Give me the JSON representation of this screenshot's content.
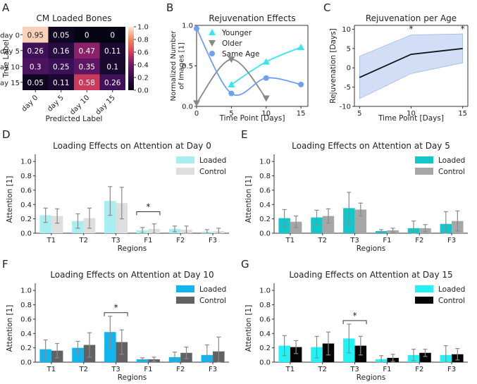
{
  "chart_data": [
    {
      "panel": "A",
      "type": "heatmap",
      "title": "CM Loaded Bones",
      "xlabel": "Predicted Label",
      "ylabel": "True Label",
      "x_categories": [
        "day 0",
        "day 5",
        "day 10",
        "day 15"
      ],
      "y_categories": [
        "day 0",
        "day 5",
        "day 10",
        "day 15"
      ],
      "values": [
        [
          0.95,
          0.05,
          0,
          0
        ],
        [
          0.26,
          0.16,
          0.47,
          0.11
        ],
        [
          0.3,
          0.25,
          0.35,
          0.1
        ],
        [
          0.05,
          0.11,
          0.58,
          0.26
        ]
      ],
      "value_labels": [
        [
          "0.95",
          "0.05",
          "0",
          "0"
        ],
        [
          "0.26",
          "0.16",
          "0.47",
          "0.11"
        ],
        [
          "0.3",
          "0.25",
          "0.35",
          "0.1"
        ],
        [
          "0.05",
          "0.11",
          "0.58",
          "0.26"
        ]
      ],
      "colorbar": {
        "range": [
          0,
          1.0
        ],
        "ticks": [
          "0.0",
          "0.2",
          "0.4",
          "0.6",
          "0.8",
          "1.0"
        ]
      }
    },
    {
      "panel": "B",
      "type": "line",
      "title": "Rejuvenation Effects",
      "xlabel": "Time Point [Days]",
      "ylabel": "Normalized Number of Images [1]",
      "xlim": [
        0,
        16
      ],
      "ylim": [
        0,
        1.0
      ],
      "xticks": [
        "0",
        "5",
        "10",
        "15"
      ],
      "yticks": [
        "0.0",
        "0.5",
        "1.0"
      ],
      "legend_position": "top-right",
      "series": [
        {
          "name": "Younger",
          "color": "#33e8f0",
          "marker": "triangle-up",
          "x": [
            5,
            10,
            15
          ],
          "y": [
            0.27,
            0.55,
            0.73
          ]
        },
        {
          "name": "Older",
          "color": "#888888",
          "marker": "triangle-down",
          "x": [
            0,
            5,
            10
          ],
          "y": [
            0.04,
            0.58,
            0.1
          ]
        },
        {
          "name": "Same Age",
          "color": "#6fa0f0",
          "marker": "circle",
          "x": [
            0,
            5,
            10,
            15
          ],
          "y": [
            0.96,
            0.16,
            0.35,
            0.27
          ]
        }
      ]
    },
    {
      "panel": "C",
      "type": "area",
      "title": "Rejuvenation per Age",
      "xlabel": "Time Point [Days]",
      "ylabel": "Rejuvenation [Days]",
      "xlim": [
        4.5,
        15.5
      ],
      "ylim": [
        -10,
        11
      ],
      "xticks": [
        "5",
        "10",
        "15"
      ],
      "yticks": [
        "-10",
        "-5",
        "0",
        "5",
        "10"
      ],
      "x": [
        5,
        10,
        15
      ],
      "y": [
        -2.5,
        3.5,
        5.0
      ],
      "band_upper": [
        3.0,
        8.5,
        8.8
      ],
      "band_lower": [
        -8.0,
        -1.5,
        1.3
      ],
      "line_color": "#111111",
      "band_color": "#c6d6f3",
      "annotations": [
        {
          "x": 10,
          "text": "*"
        },
        {
          "x": 15,
          "text": "*"
        }
      ]
    },
    {
      "panel": "D",
      "type": "bar",
      "title": "Loading Effects on Attention at Day 0",
      "xlabel": "Regions",
      "ylabel": "Attention [1]",
      "ylim": [
        0,
        1.1
      ],
      "yticks": [
        "0.0",
        "0.2",
        "0.4",
        "0.6",
        "0.8",
        "1.0"
      ],
      "categories": [
        "T1",
        "T2",
        "T3",
        "F1",
        "F2",
        "F3"
      ],
      "legend_position": "top-right",
      "series": [
        {
          "name": "Loaded",
          "color": "#a8eef0",
          "values": [
            0.25,
            0.17,
            0.45,
            0.04,
            0.06,
            0.02
          ],
          "errors": [
            0.1,
            0.1,
            0.2,
            0.04,
            0.04,
            0.03
          ]
        },
        {
          "name": "Control",
          "color": "#dedede",
          "values": [
            0.24,
            0.21,
            0.42,
            0.06,
            0.05,
            0.03
          ],
          "errors": [
            0.1,
            0.14,
            0.22,
            0.07,
            0.05,
            0.04
          ]
        }
      ],
      "significance": [
        {
          "category": "F1",
          "text": "*"
        }
      ]
    },
    {
      "panel": "E",
      "type": "bar",
      "title": "Loading Effects on Attention at Day 5",
      "xlabel": "Regions",
      "ylabel": "Attention [1]",
      "ylim": [
        0,
        1.1
      ],
      "yticks": [
        "0.0",
        "0.2",
        "0.4",
        "0.6",
        "0.8",
        "1.0"
      ],
      "categories": [
        "T1",
        "T2",
        "T3",
        "F1",
        "F2",
        "F3"
      ],
      "legend_position": "top-right",
      "series": [
        {
          "name": "Loaded",
          "color": "#12c6c9",
          "values": [
            0.21,
            0.22,
            0.35,
            0.03,
            0.07,
            0.13
          ],
          "errors": [
            0.12,
            0.1,
            0.22,
            0.02,
            0.1,
            0.17
          ]
        },
        {
          "name": "Control",
          "color": "#a6a6a6",
          "values": [
            0.16,
            0.24,
            0.33,
            0.04,
            0.07,
            0.17
          ],
          "errors": [
            0.08,
            0.1,
            0.09,
            0.03,
            0.05,
            0.14
          ]
        }
      ],
      "significance": []
    },
    {
      "panel": "F",
      "type": "bar",
      "title": "Loading Effects on Attention at Day 10",
      "xlabel": "Regions",
      "ylabel": "Attention [1]",
      "ylim": [
        0,
        1.1
      ],
      "yticks": [
        "0.0",
        "0.2",
        "0.4",
        "0.6",
        "0.8",
        "1.0"
      ],
      "categories": [
        "T1",
        "T2",
        "T3",
        "F1",
        "F2",
        "F3"
      ],
      "legend_position": "top-right",
      "series": [
        {
          "name": "Loaded",
          "color": "#10b4ee",
          "values": [
            0.18,
            0.2,
            0.42,
            0.04,
            0.07,
            0.1
          ],
          "errors": [
            0.13,
            0.09,
            0.22,
            0.02,
            0.07,
            0.14
          ]
        },
        {
          "name": "Control",
          "color": "#626262",
          "values": [
            0.16,
            0.24,
            0.28,
            0.04,
            0.13,
            0.15
          ],
          "errors": [
            0.1,
            0.17,
            0.17,
            0.03,
            0.08,
            0.2
          ]
        }
      ],
      "significance": [
        {
          "category": "T3",
          "text": "*"
        }
      ]
    },
    {
      "panel": "G",
      "type": "bar",
      "title": "Loading Effects on Attention at Day 15",
      "xlabel": "Regions",
      "ylabel": "Attention [1]",
      "ylim": [
        0,
        1.1
      ],
      "yticks": [
        "0.0",
        "0.2",
        "0.4",
        "0.6",
        "0.8",
        "1.0"
      ],
      "categories": [
        "T1",
        "T2",
        "T3",
        "F1",
        "F2",
        "F3"
      ],
      "legend_position": "top-right",
      "series": [
        {
          "name": "Loaded",
          "color": "#22f2f4",
          "values": [
            0.23,
            0.21,
            0.33,
            0.04,
            0.1,
            0.1
          ],
          "errors": [
            0.14,
            0.15,
            0.2,
            0.05,
            0.08,
            0.13
          ]
        },
        {
          "name": "Control",
          "color": "#050505",
          "values": [
            0.21,
            0.26,
            0.23,
            0.06,
            0.13,
            0.11
          ],
          "errors": [
            0.09,
            0.16,
            0.13,
            0.05,
            0.05,
            0.08
          ]
        }
      ],
      "significance": [
        {
          "category": "T3",
          "text": "*"
        }
      ]
    }
  ]
}
